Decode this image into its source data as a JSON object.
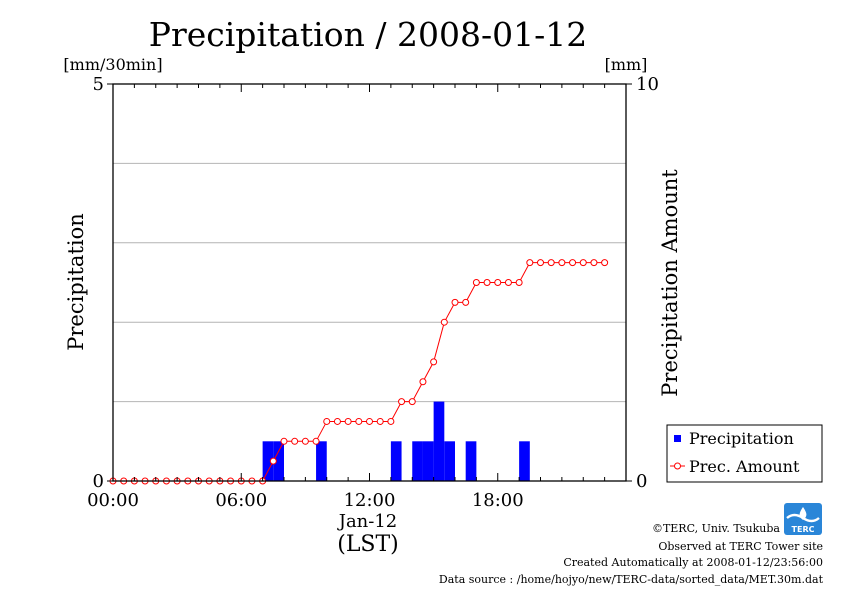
{
  "chart_data": {
    "type": "bar",
    "title": "Precipitation / 2008-01-12",
    "left_axis": {
      "unit": "[mm/30min]",
      "label": "Precipitation",
      "ylim": [
        0,
        5
      ],
      "ticks": [
        0,
        5
      ],
      "tick_labels": [
        "0",
        "5"
      ],
      "gridlines": [
        1,
        2,
        3,
        4
      ]
    },
    "right_axis": {
      "unit": "[mm]",
      "label": "Precipitation Amount",
      "ylim": [
        0,
        10
      ],
      "ticks": [
        0,
        10
      ],
      "tick_labels": [
        "0",
        "10"
      ]
    },
    "x_axis": {
      "xlim_hours": [
        0,
        24
      ],
      "ticks": [
        0,
        6,
        12,
        18
      ],
      "tick_labels": [
        "00:00",
        "06:00",
        "12:00",
        "18:00"
      ],
      "date_label": "Jan-12",
      "tz_label": "(LST)"
    },
    "grid": true,
    "legend_position": "right",
    "series": [
      {
        "name": "Precipitation",
        "type": "bar",
        "color": "#0000ff",
        "bar_width_hours": 0.5,
        "x": [
          "07:00",
          "07:30",
          "09:30",
          "13:00",
          "14:00",
          "14:30",
          "15:00",
          "15:30",
          "16:30",
          "19:00"
        ],
        "values": [
          0.5,
          0.5,
          0.5,
          0.5,
          0.5,
          0.5,
          1.0,
          0.5,
          0.5,
          0.5
        ]
      },
      {
        "name": "Prec. Amount",
        "type": "line",
        "color": "#ff0000",
        "x": [
          "00:00",
          "00:30",
          "01:00",
          "01:30",
          "02:00",
          "02:30",
          "03:00",
          "03:30",
          "04:00",
          "04:30",
          "05:00",
          "05:30",
          "06:00",
          "06:30",
          "07:00",
          "07:30",
          "08:00",
          "08:30",
          "09:00",
          "09:30",
          "10:00",
          "10:30",
          "11:00",
          "11:30",
          "12:00",
          "12:30",
          "13:00",
          "13:30",
          "14:00",
          "14:30",
          "15:00",
          "15:30",
          "16:00",
          "16:30",
          "17:00",
          "17:30",
          "18:00",
          "18:30",
          "19:00",
          "19:30",
          "20:00",
          "20:30",
          "21:00",
          "21:30",
          "22:00",
          "22:30",
          "23:00"
        ],
        "values": [
          0,
          0,
          0,
          0,
          0,
          0,
          0,
          0,
          0,
          0,
          0,
          0,
          0,
          0,
          0,
          0.5,
          1,
          1,
          1,
          1,
          1.5,
          1.5,
          1.5,
          1.5,
          1.5,
          1.5,
          1.5,
          2,
          2,
          2.5,
          3,
          4,
          4.5,
          4.5,
          5,
          5,
          5,
          5,
          5,
          5.5,
          5.5,
          5.5,
          5.5,
          5.5,
          5.5,
          5.5,
          5.5
        ]
      }
    ]
  },
  "credits": {
    "copyright": "©TERC, Univ. Tsukuba",
    "observed": "Observed at TERC Tower site",
    "created": "Created Automatically at 2008-01-12/23:56:00",
    "source": "Data source : /home/hojyo/new/TERC-data/sorted_data/MET.30m.dat",
    "logo_text": "TERC"
  }
}
